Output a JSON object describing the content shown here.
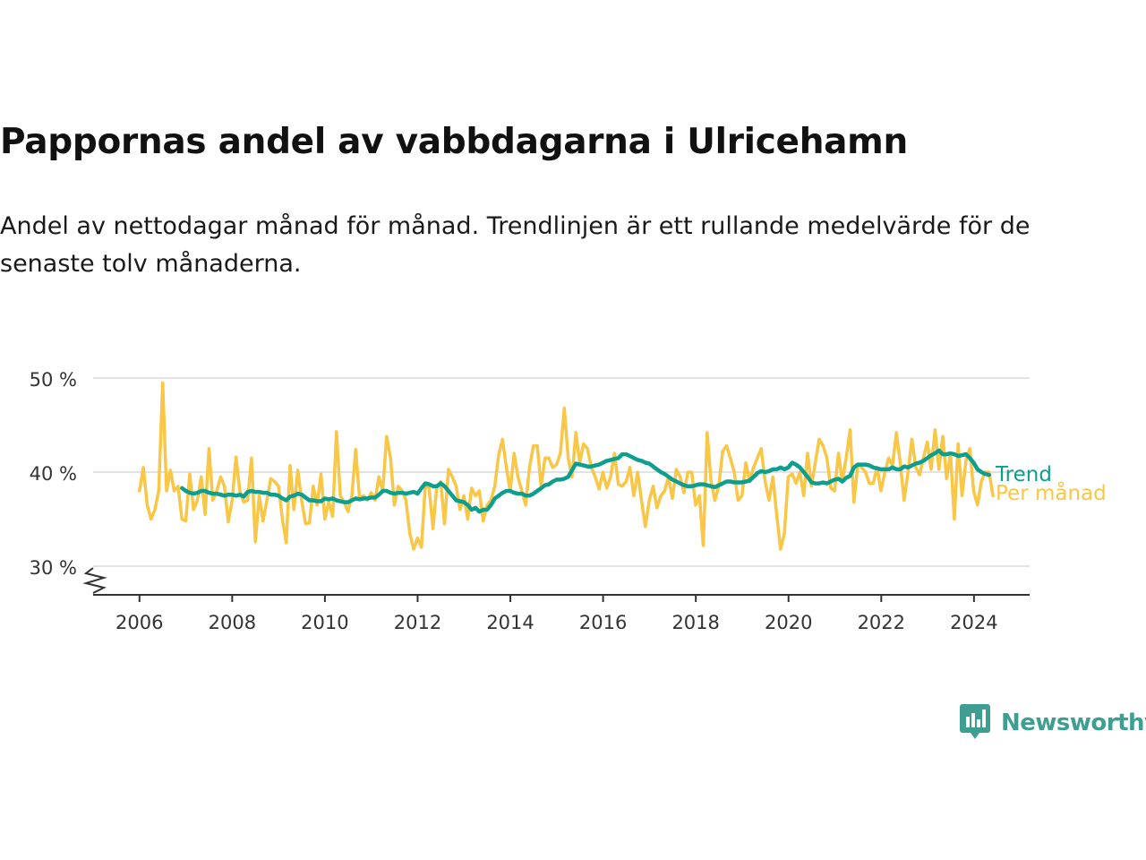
{
  "title": "Pappornas andel av vabbdagarna i Ulricehamn",
  "subtitle": "Andel av nettodagar månad för månad. Trendlinjen är ett rullande medelvärde för de senaste tolv månaderna.",
  "brand": {
    "name": "Newsworthy",
    "color": "#3f9e92"
  },
  "colors": {
    "trend": "#0e9e8e",
    "monthly": "#f9c646",
    "grid": "#d9d9d9",
    "axis": "#333333"
  },
  "chart_data": {
    "type": "line",
    "x_unit": "year",
    "y_unit": "%",
    "ylim": [
      30,
      50
    ],
    "xlim": [
      2005.0,
      2025.2
    ],
    "y_ticks": [
      30,
      40,
      50
    ],
    "y_tick_labels": [
      "30 %",
      "40 %",
      "50 %"
    ],
    "x_ticks": [
      2006,
      2008,
      2010,
      2012,
      2014,
      2016,
      2018,
      2020,
      2022,
      2024
    ],
    "x_tick_labels": [
      "2006",
      "2008",
      "2010",
      "2012",
      "2014",
      "2016",
      "2018",
      "2020",
      "2022",
      "2024"
    ],
    "axis_break": true,
    "grid": true,
    "legend": "inline-right",
    "series": [
      {
        "name": "Per månad",
        "color": "#f9c646",
        "x_start": 2006.0,
        "step": 0.0833,
        "values": [
          38.0,
          40.5,
          36.5,
          35.0,
          36.0,
          38.0,
          49.5,
          38.0,
          40.2,
          38.0,
          38.5,
          35.0,
          34.8,
          39.8,
          36.0,
          37.0,
          39.5,
          35.5,
          42.5,
          37.0,
          38.0,
          39.5,
          38.5,
          34.7,
          37.0,
          41.6,
          38.0,
          36.8,
          37.0,
          41.5,
          32.6,
          37.5,
          34.8,
          37.0,
          39.3,
          39.0,
          38.5,
          35.0,
          32.5,
          40.7,
          36.0,
          40.2,
          37.0,
          34.5,
          34.6,
          38.5,
          36.5,
          39.8,
          35.0,
          36.8,
          35.3,
          44.3,
          37.5,
          36.8,
          35.8,
          37.5,
          42.4,
          37.2,
          37.5,
          37.0,
          37.8,
          37.0,
          39.5,
          38.0,
          43.8,
          41.5,
          36.5,
          38.5,
          38.0,
          37.0,
          33.5,
          31.8,
          33.0,
          32.0,
          38.5,
          38.3,
          34.0,
          38.5,
          39.0,
          34.5,
          40.3,
          39.5,
          38.5,
          36.0,
          37.5,
          35.0,
          38.3,
          37.5,
          38.0,
          34.8,
          36.5,
          37.0,
          38.5,
          41.8,
          43.5,
          40.5,
          38.0,
          42.0,
          39.5,
          38.0,
          36.5,
          40.5,
          42.8,
          42.8,
          38.5,
          41.5,
          41.5,
          40.5,
          40.8,
          42.0,
          46.8,
          41.5,
          39.5,
          44.2,
          41.0,
          43.0,
          42.5,
          40.5,
          39.5,
          38.2,
          40.0,
          38.3,
          39.5,
          42.0,
          38.7,
          38.5,
          39.0,
          40.5,
          37.5,
          40.0,
          37.0,
          34.2,
          37.0,
          38.5,
          36.2,
          37.5,
          38.0,
          39.5,
          37.2,
          40.3,
          39.5,
          37.8,
          40.0,
          40.0,
          36.5,
          37.5,
          32.2,
          44.2,
          39.0,
          37.0,
          38.5,
          42.2,
          42.8,
          41.5,
          40.0,
          37.0,
          37.5,
          41.0,
          39.0,
          40.5,
          41.5,
          42.5,
          39.0,
          37.0,
          39.5,
          35.5,
          31.8,
          33.5,
          39.5,
          39.8,
          38.8,
          40.0,
          37.5,
          42.0,
          38.5,
          41.0,
          43.5,
          42.8,
          41.5,
          38.3,
          38.0,
          42.0,
          39.0,
          41.5,
          44.5,
          36.8,
          40.8,
          40.5,
          40.0,
          38.8,
          38.8,
          40.5,
          38.0,
          40.0,
          41.5,
          40.7,
          44.2,
          41.0,
          37.0,
          40.0,
          43.5,
          40.5,
          39.7,
          41.5,
          43.2,
          40.3,
          44.5,
          40.3,
          43.8,
          39.3,
          42.0,
          35.0,
          43.0,
          37.5,
          41.2,
          42.5,
          38.0,
          36.5,
          39.0,
          40.0,
          40.0,
          37.5
        ]
      },
      {
        "name": "Trend",
        "color": "#0e9e8e",
        "x_start": 2006.917,
        "step": 0.0833,
        "values": [
          38.3,
          38.0,
          37.8,
          37.7,
          37.8,
          38.0,
          38.0,
          37.8,
          37.7,
          37.7,
          37.6,
          37.5,
          37.6,
          37.6,
          37.5,
          37.6,
          37.4,
          37.9,
          38.0,
          37.9,
          37.9,
          37.8,
          37.8,
          37.6,
          37.6,
          37.5,
          37.2,
          37.0,
          37.4,
          37.5,
          37.7,
          37.6,
          37.3,
          37.0,
          37.0,
          36.9,
          36.9,
          37.2,
          37.1,
          37.2,
          37.0,
          36.9,
          36.8,
          36.8,
          37.0,
          37.2,
          37.1,
          37.2,
          37.2,
          37.3,
          37.3,
          37.6,
          38.0,
          38.0,
          37.8,
          37.7,
          37.8,
          37.8,
          37.7,
          37.8,
          37.9,
          37.7,
          38.3,
          38.8,
          38.7,
          38.5,
          38.5,
          38.8,
          38.5,
          38.0,
          37.5,
          37.0,
          36.9,
          36.8,
          36.5,
          36.0,
          36.2,
          35.8,
          36.0,
          36.0,
          36.5,
          37.2,
          37.5,
          37.8,
          38.0,
          38.0,
          37.8,
          37.7,
          37.7,
          37.5,
          37.5,
          37.7,
          38.0,
          38.3,
          38.6,
          38.7,
          39.0,
          39.2,
          39.2,
          39.3,
          39.5,
          40.2,
          40.9,
          40.8,
          40.7,
          40.6,
          40.6,
          40.7,
          40.8,
          41.0,
          41.2,
          41.3,
          41.4,
          41.5,
          41.9,
          41.9,
          41.7,
          41.5,
          41.3,
          41.2,
          41.0,
          40.9,
          40.6,
          40.3,
          40.0,
          39.8,
          39.5,
          39.2,
          39.0,
          38.8,
          38.6,
          38.5,
          38.5,
          38.6,
          38.7,
          38.7,
          38.6,
          38.5,
          38.4,
          38.6,
          38.8,
          39.0,
          39.0,
          38.9,
          38.9,
          38.9,
          39.0,
          39.1,
          39.5,
          39.9,
          40.1,
          40.0,
          40.1,
          40.3,
          40.3,
          40.5,
          40.3,
          40.5,
          41.0,
          40.8,
          40.5,
          40.0,
          39.5,
          38.9,
          38.8,
          38.8,
          38.9,
          38.8,
          39.0,
          39.2,
          39.3,
          39.0,
          39.4,
          39.6,
          40.5,
          40.8,
          40.8,
          40.8,
          40.7,
          40.5,
          40.4,
          40.3,
          40.3,
          40.3,
          40.5,
          40.3,
          40.3,
          40.6,
          40.5,
          40.7,
          40.9,
          41.0,
          41.2,
          41.5,
          41.8,
          42.0,
          42.3,
          41.9,
          41.9,
          42.0,
          41.9,
          41.7,
          41.8,
          41.9,
          41.5,
          41.0,
          40.3,
          40.0,
          39.8,
          39.7
        ]
      }
    ]
  }
}
